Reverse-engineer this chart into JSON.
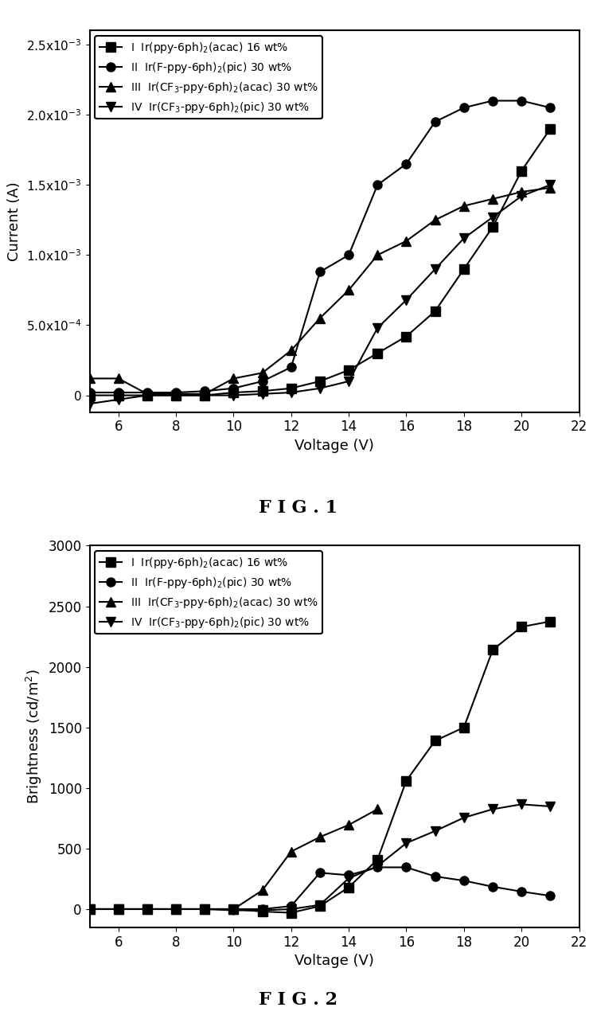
{
  "fig1": {
    "title": "FIG.1",
    "xlabel": "Voltage (V)",
    "ylabel": "Current (A)",
    "xlim": [
      5,
      22
    ],
    "ylim": [
      -0.00012,
      0.0026
    ],
    "xticks": [
      6,
      8,
      10,
      12,
      14,
      16,
      18,
      20,
      22
    ],
    "yticks": [
      0.0,
      0.0005,
      0.001,
      0.0015,
      0.002,
      0.0025
    ],
    "ytick_labels": [
      "0",
      "5.0x10$^{-4}$",
      "1.0x10$^{-3}$",
      "1.5x10$^{-3}$",
      "2.0x10$^{-3}$",
      "2.5x10$^{-3}$"
    ],
    "series": [
      {
        "label": "I  Ir(ppy-6ph)$_2$(acac) 16 wt%",
        "marker": "s",
        "x": [
          5,
          6,
          7,
          8,
          9,
          10,
          11,
          12,
          13,
          14,
          15,
          16,
          17,
          18,
          19,
          20,
          21
        ],
        "y": [
          0.0,
          0.0,
          0.0,
          0.0,
          0.0,
          2e-05,
          3e-05,
          5e-05,
          0.0001,
          0.00018,
          0.0003,
          0.00042,
          0.0006,
          0.0009,
          0.0012,
          0.0016,
          0.0019
        ]
      },
      {
        "label": "II  Ir(F-ppy-6ph)$_2$(pic) 30 wt%",
        "marker": "o",
        "x": [
          5,
          6,
          7,
          8,
          9,
          10,
          11,
          12,
          13,
          14,
          15,
          16,
          17,
          18,
          19,
          20,
          21
        ],
        "y": [
          2e-05,
          2e-05,
          2e-05,
          2e-05,
          3e-05,
          5e-05,
          0.0001,
          0.0002,
          0.00088,
          0.001,
          0.0015,
          0.00165,
          0.00195,
          0.00205,
          0.0021,
          0.0021,
          0.00205
        ]
      },
      {
        "label": "III  Ir(CF$_3$-ppy-6ph)$_2$(acac) 30 wt%",
        "marker": "^",
        "x": [
          5,
          6,
          7,
          8,
          9,
          10,
          11,
          12,
          13,
          14,
          15,
          16,
          17,
          18,
          19,
          20,
          21
        ],
        "y": [
          0.00012,
          0.00012,
          1e-05,
          1e-05,
          1e-05,
          0.00012,
          0.00016,
          0.00032,
          0.00055,
          0.00075,
          0.001,
          0.0011,
          0.00125,
          0.00135,
          0.0014,
          0.00145,
          0.00148
        ]
      },
      {
        "label": "IV  Ir(CF$_3$-ppy-6ph)$_2$(pic) 30 wt%",
        "marker": "v",
        "x": [
          5,
          6,
          7,
          8,
          9,
          10,
          11,
          12,
          13,
          14,
          15,
          16,
          17,
          18,
          19,
          20,
          21
        ],
        "y": [
          -6e-05,
          -3e-05,
          0.0,
          0.0,
          0.0,
          0.0,
          1e-05,
          2e-05,
          5e-05,
          0.0001,
          0.00048,
          0.00068,
          0.0009,
          0.00112,
          0.00127,
          0.00142,
          0.0015
        ]
      }
    ]
  },
  "fig2": {
    "title": "FIG.2",
    "xlabel": "Voltage (V)",
    "ylabel": "Brightness (cd/m$^2$)",
    "xlim": [
      5,
      22
    ],
    "ylim": [
      -150,
      3000
    ],
    "xticks": [
      6,
      8,
      10,
      12,
      14,
      16,
      18,
      20,
      22
    ],
    "yticks": [
      0,
      500,
      1000,
      1500,
      2000,
      2500,
      3000
    ],
    "series": [
      {
        "label": "I  Ir(ppy-6ph)$_2$(acac) 16 wt%",
        "marker": "s",
        "x": [
          5,
          6,
          7,
          8,
          9,
          10,
          11,
          12,
          13,
          14,
          15,
          16,
          17,
          18,
          19,
          20,
          21
        ],
        "y": [
          0,
          0,
          0,
          0,
          0,
          0,
          -20,
          -30,
          25,
          180,
          410,
          1060,
          1390,
          1500,
          2140,
          2330,
          2375
        ]
      },
      {
        "label": "II  Ir(F-ppy-6ph)$_2$(pic) 30 wt%",
        "marker": "o",
        "x": [
          5,
          6,
          7,
          8,
          9,
          10,
          11,
          12,
          13,
          14,
          15,
          16,
          17,
          18,
          19,
          20,
          21
        ],
        "y": [
          0,
          0,
          0,
          0,
          0,
          0,
          0,
          25,
          300,
          280,
          345,
          345,
          270,
          235,
          185,
          145,
          110
        ]
      },
      {
        "label": "III  Ir(CF$_3$-ppy-6ph)$_2$(acac) 30 wt%",
        "marker": "^",
        "x": [
          5,
          6,
          7,
          8,
          9,
          10,
          11,
          12,
          13,
          14,
          15
        ],
        "y": [
          0,
          0,
          0,
          0,
          0,
          0,
          155,
          475,
          595,
          695,
          825
        ]
      },
      {
        "label": "IV  Ir(CF$_3$-ppy-6ph)$_2$(pic) 30 wt%",
        "marker": "v",
        "x": [
          5,
          6,
          7,
          8,
          9,
          10,
          11,
          12,
          13,
          14,
          15,
          16,
          17,
          18,
          19,
          20,
          21
        ],
        "y": [
          0,
          0,
          0,
          0,
          0,
          -10,
          -10,
          0,
          35,
          255,
          355,
          545,
          645,
          755,
          825,
          865,
          848
        ]
      }
    ]
  },
  "color": "#000000",
  "linewidth": 1.5,
  "markersize": 8,
  "background_color": "#ffffff"
}
